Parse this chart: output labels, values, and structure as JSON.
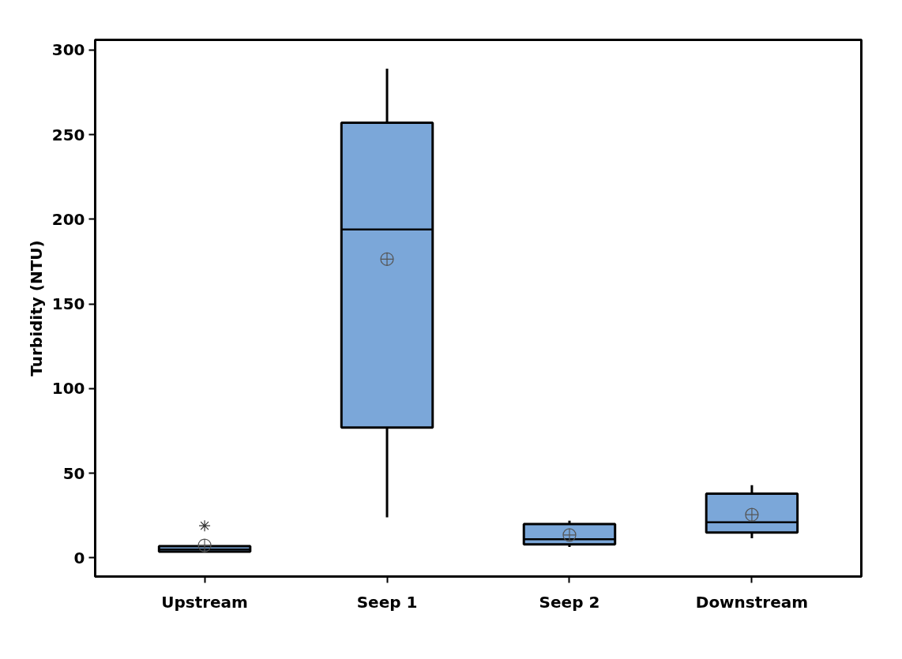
{
  "chart_data": {
    "type": "box",
    "ylabel": "Turbidity (NTU)",
    "categories": [
      "Upstream",
      "Seep 1",
      "Seep 2",
      "Downstream"
    ],
    "color": "#7ba7d9",
    "boxes": [
      {
        "low": 3.7,
        "q1": 3.7,
        "median": 5,
        "q3": 7,
        "high": 7,
        "mean": 7.4,
        "outliers": [
          19
        ]
      },
      {
        "low": 24,
        "q1": 77,
        "median": 194,
        "q3": 257,
        "high": 289,
        "mean": 176.5
      },
      {
        "low": 6.5,
        "q1": 8,
        "median": 11,
        "q3": 20,
        "high": 22,
        "mean": 13.5
      },
      {
        "low": 11.6,
        "q1": 15,
        "median": 21,
        "q3": 38,
        "high": 43,
        "mean": 25.5
      }
    ],
    "ylim": [
      -11,
      306
    ],
    "yticks": [
      0,
      50,
      100,
      150,
      200,
      250,
      300
    ]
  }
}
